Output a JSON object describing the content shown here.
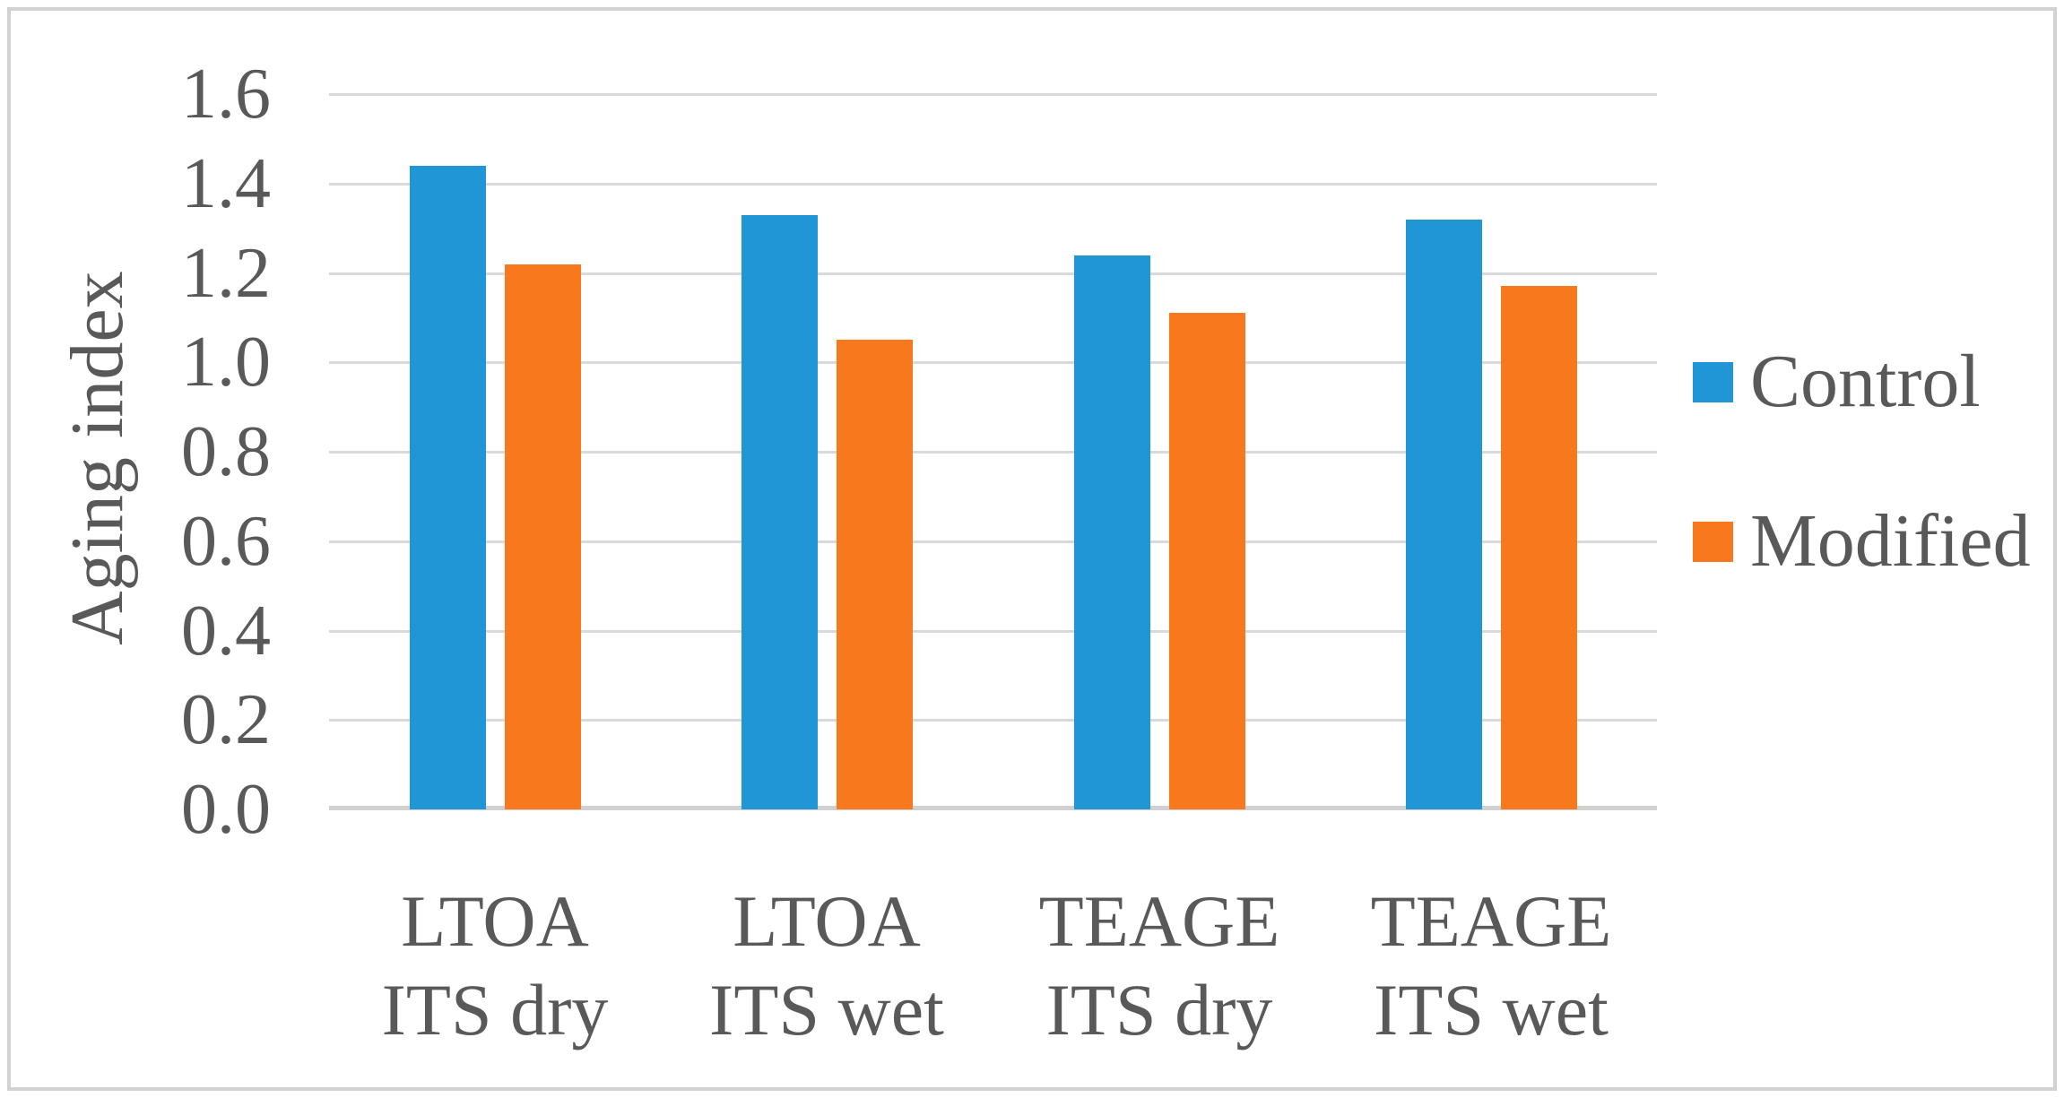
{
  "figure": {
    "background": "#ffffff",
    "border_color": "#d2d2d2"
  },
  "chart_data": {
    "type": "bar",
    "title": "",
    "xlabel": "",
    "ylabel": "Aging index",
    "categories": [
      "LTOA ITS dry",
      "LTOA ITS wet",
      "TEAGE ITS dry",
      "TEAGE ITS wet"
    ],
    "category_lines": [
      [
        "LTOA",
        "ITS dry"
      ],
      [
        "LTOA",
        "ITS wet"
      ],
      [
        "TEAGE",
        "ITS dry"
      ],
      [
        "TEAGE",
        "ITS wet"
      ]
    ],
    "series": [
      {
        "name": "Control",
        "color": "#2196d6",
        "values": [
          1.44,
          1.33,
          1.24,
          1.32
        ]
      },
      {
        "name": "Modified",
        "color": "#f8791d",
        "values": [
          1.22,
          1.05,
          1.11,
          1.17
        ]
      }
    ],
    "ylim": [
      0,
      1.6
    ],
    "ytick_step": 0.2,
    "yticks": [
      "1.6",
      "1.4",
      "1.2",
      "1.0",
      "0.8",
      "0.6",
      "0.4",
      "0.2",
      "0.0"
    ],
    "grid": true,
    "legend_position": "right",
    "colors": {
      "gridline": "#d9d9d9",
      "axis_line": "#d0d0d0",
      "text": "#595959"
    }
  }
}
